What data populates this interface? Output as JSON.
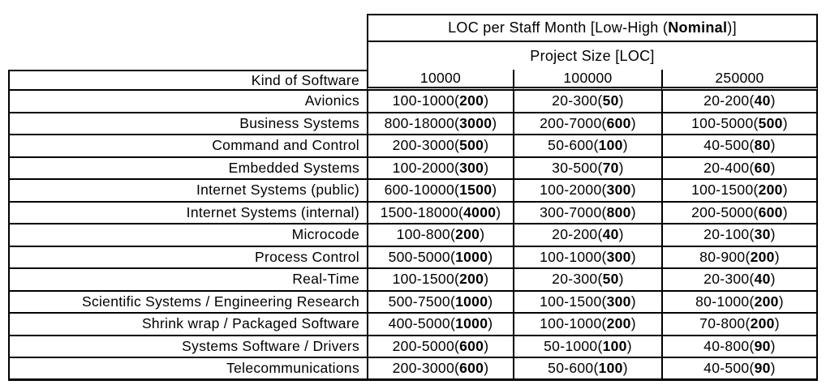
{
  "colors": {
    "background": "#ffffff",
    "text": "#000000",
    "border": "#000000"
  },
  "table": {
    "title_prefix": "LOC per Staff Month [Low-High (",
    "title_bold": "Nominal",
    "title_suffix": ")]",
    "subtitle": "Project Size [LOC]",
    "row_header": "Kind of Software",
    "columns": [
      "10000",
      "100000",
      "250000"
    ],
    "rows": [
      {
        "label": "Avionics",
        "values": [
          {
            "range": "100-1000",
            "nominal": "200"
          },
          {
            "range": "20-300",
            "nominal": "50"
          },
          {
            "range": "20-200",
            "nominal": "40"
          }
        ]
      },
      {
        "label": "Business Systems",
        "values": [
          {
            "range": "800-18000",
            "nominal": "3000"
          },
          {
            "range": "200-7000",
            "nominal": "600"
          },
          {
            "range": "100-5000",
            "nominal": "500"
          }
        ]
      },
      {
        "label": "Command and Control",
        "values": [
          {
            "range": "200-3000",
            "nominal": "500"
          },
          {
            "range": "50-600",
            "nominal": "100"
          },
          {
            "range": "40-500",
            "nominal": "80"
          }
        ]
      },
      {
        "label": "Embedded Systems",
        "values": [
          {
            "range": "100-2000",
            "nominal": "300"
          },
          {
            "range": "30-500",
            "nominal": "70"
          },
          {
            "range": "20-400",
            "nominal": "60"
          }
        ]
      },
      {
        "label": "Internet Systems (public)",
        "values": [
          {
            "range": "600-10000",
            "nominal": "1500"
          },
          {
            "range": "100-2000",
            "nominal": "300"
          },
          {
            "range": "100-1500",
            "nominal": "200"
          }
        ]
      },
      {
        "label": "Internet Systems (internal)",
        "values": [
          {
            "range": "1500-18000",
            "nominal": "4000"
          },
          {
            "range": "300-7000",
            "nominal": "800"
          },
          {
            "range": "200-5000",
            "nominal": "600"
          }
        ]
      },
      {
        "label": "Microcode",
        "values": [
          {
            "range": "100-800",
            "nominal": "200"
          },
          {
            "range": "20-200",
            "nominal": "40"
          },
          {
            "range": "20-100",
            "nominal": "30"
          }
        ]
      },
      {
        "label": "Process Control",
        "values": [
          {
            "range": "500-5000",
            "nominal": "1000"
          },
          {
            "range": "100-1000",
            "nominal": "300"
          },
          {
            "range": "80-900",
            "nominal": "200"
          }
        ]
      },
      {
        "label": "Real-Time",
        "values": [
          {
            "range": "100-1500",
            "nominal": "200"
          },
          {
            "range": "20-300",
            "nominal": "50"
          },
          {
            "range": "20-300",
            "nominal": "40"
          }
        ]
      },
      {
        "label": "Scientific Systems / Engineering Research",
        "values": [
          {
            "range": "500-7500",
            "nominal": "1000"
          },
          {
            "range": "100-1500",
            "nominal": "300"
          },
          {
            "range": "80-1000",
            "nominal": "200"
          }
        ]
      },
      {
        "label": "Shrink wrap / Packaged Software",
        "values": [
          {
            "range": "400-5000",
            "nominal": "1000"
          },
          {
            "range": "100-1000",
            "nominal": "200"
          },
          {
            "range": "70-800",
            "nominal": "200"
          }
        ]
      },
      {
        "label": "Systems Software / Drivers",
        "values": [
          {
            "range": "200-5000",
            "nominal": "600"
          },
          {
            "range": "50-1000",
            "nominal": "100"
          },
          {
            "range": "40-800",
            "nominal": "90"
          }
        ]
      },
      {
        "label": "Telecommunications",
        "values": [
          {
            "range": "200-3000",
            "nominal": "600"
          },
          {
            "range": "50-600",
            "nominal": "100"
          },
          {
            "range": "40-500",
            "nominal": "90"
          }
        ]
      }
    ]
  }
}
